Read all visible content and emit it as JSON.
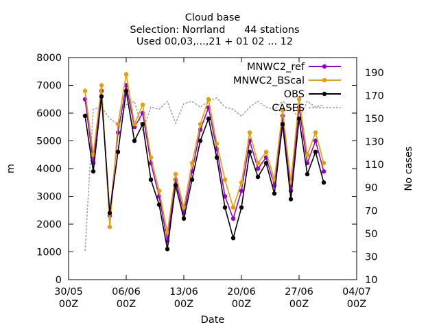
{
  "chart_data": {
    "type": "line",
    "title_lines": [
      "Cloud base",
      "Selection: Norrland      44 stations",
      "Used 00,03,...,21 + 01 02 ... 12"
    ],
    "xlabel": "Date",
    "ylabel": "m",
    "y2label": "No cases",
    "x_ticks": [
      {
        "date": "2024-05-30",
        "line1": "30/05",
        "line2": "00Z"
      },
      {
        "date": "2024-06-06",
        "line1": "06/06",
        "line2": "00Z"
      },
      {
        "date": "2024-06-13",
        "line1": "13/06",
        "line2": "00Z"
      },
      {
        "date": "2024-06-20",
        "line1": "20/06",
        "line2": "00Z"
      },
      {
        "date": "2024-06-27",
        "line1": "27/06",
        "line2": "00Z"
      },
      {
        "date": "2024-07-04",
        "line1": "04/07",
        "line2": "00Z"
      }
    ],
    "xlim": [
      "2024-05-30",
      "2024-07-04"
    ],
    "ylim": [
      0,
      8000
    ],
    "y_ticks": [
      "0",
      "1000",
      "2000",
      "3000",
      "4000",
      "5000",
      "6000",
      "7000",
      "8000"
    ],
    "y2lim": [
      10,
      203
    ],
    "y2_ticks": [
      "10",
      "30",
      "50",
      "70",
      "90",
      "110",
      "130",
      "150",
      "170",
      "190"
    ],
    "legend_position": "top-right",
    "legend": [
      {
        "label": "MNWC2_ref",
        "color": "#9400d3"
      },
      {
        "label": "MNWC2_BScal",
        "color": "#e69f00"
      },
      {
        "label": "OBS",
        "color": "#000000"
      },
      {
        "label": "CASES",
        "color": "#a0a0a0"
      }
    ],
    "series": [
      {
        "name": "MNWC2_ref",
        "color": "#9400d3",
        "x": [
          "2024-06-01",
          "2024-06-02",
          "2024-06-03",
          "2024-06-04",
          "2024-06-05",
          "2024-06-06",
          "2024-06-07",
          "2024-06-08",
          "2024-06-09",
          "2024-06-10",
          "2024-06-11",
          "2024-06-12",
          "2024-06-13",
          "2024-06-14",
          "2024-06-15",
          "2024-06-16",
          "2024-06-17",
          "2024-06-18",
          "2024-06-19",
          "2024-06-20",
          "2024-06-21",
          "2024-06-22",
          "2024-06-23",
          "2024-06-24",
          "2024-06-25",
          "2024-06-26",
          "2024-06-27",
          "2024-06-28",
          "2024-06-29",
          "2024-06-30"
        ],
        "y": [
          6500,
          4200,
          6800,
          2300,
          5300,
          7000,
          5500,
          6000,
          4200,
          3000,
          1400,
          3600,
          2400,
          3900,
          5400,
          6200,
          4700,
          3000,
          2200,
          3200,
          5000,
          4000,
          4400,
          3400,
          5900,
          3200,
          6200,
          4200,
          5000,
          3900
        ]
      },
      {
        "name": "MNWC2_BScal",
        "color": "#e69f00",
        "x": [
          "2024-06-01",
          "2024-06-02",
          "2024-06-03",
          "2024-06-04",
          "2024-06-05",
          "2024-06-06",
          "2024-06-07",
          "2024-06-08",
          "2024-06-09",
          "2024-06-10",
          "2024-06-11",
          "2024-06-12",
          "2024-06-13",
          "2024-06-14",
          "2024-06-15",
          "2024-06-16",
          "2024-06-17",
          "2024-06-18",
          "2024-06-19",
          "2024-06-20",
          "2024-06-21",
          "2024-06-22",
          "2024-06-23",
          "2024-06-24",
          "2024-06-25",
          "2024-06-26",
          "2024-06-27",
          "2024-06-28",
          "2024-06-29",
          "2024-06-30"
        ],
        "y": [
          6800,
          4500,
          7000,
          1900,
          5600,
          7400,
          5600,
          6300,
          4400,
          3200,
          1700,
          3800,
          2600,
          4200,
          5600,
          6500,
          4900,
          3600,
          2600,
          3500,
          5300,
          4200,
          4600,
          3600,
          6100,
          3500,
          6500,
          4500,
          5300,
          4200
        ]
      },
      {
        "name": "OBS",
        "color": "#000000",
        "x": [
          "2024-06-01",
          "2024-06-02",
          "2024-06-03",
          "2024-06-04",
          "2024-06-05",
          "2024-06-06",
          "2024-06-07",
          "2024-06-08",
          "2024-06-09",
          "2024-06-10",
          "2024-06-11",
          "2024-06-12",
          "2024-06-13",
          "2024-06-14",
          "2024-06-15",
          "2024-06-16",
          "2024-06-17",
          "2024-06-18",
          "2024-06-19",
          "2024-06-20",
          "2024-06-21",
          "2024-06-22",
          "2024-06-23",
          "2024-06-24",
          "2024-06-25",
          "2024-06-26",
          "2024-06-27",
          "2024-06-28",
          "2024-06-29",
          "2024-06-30"
        ],
        "y": [
          5900,
          3900,
          6600,
          2400,
          4600,
          6800,
          5000,
          5600,
          3600,
          2700,
          1100,
          3400,
          2200,
          3600,
          5000,
          5800,
          4400,
          2600,
          1500,
          2600,
          4600,
          3700,
          4200,
          3100,
          5600,
          2900,
          5800,
          3800,
          4600,
          3500
        ]
      },
      {
        "name": "CASES",
        "color": "#a0a0a0",
        "axis": "y2",
        "x": [
          "2024-06-01",
          "2024-06-02",
          "2024-06-03",
          "2024-06-04",
          "2024-06-05",
          "2024-06-06",
          "2024-06-07",
          "2024-06-08",
          "2024-06-09",
          "2024-06-10",
          "2024-06-11",
          "2024-06-12",
          "2024-06-13",
          "2024-06-14",
          "2024-06-15",
          "2024-06-16",
          "2024-06-17",
          "2024-06-18",
          "2024-06-19",
          "2024-06-20",
          "2024-06-21",
          "2024-06-22",
          "2024-06-23",
          "2024-06-24",
          "2024-06-25",
          "2024-06-26",
          "2024-06-27",
          "2024-06-28",
          "2024-06-29",
          "2024-06-30"
        ],
        "y": [
          35,
          158,
          160,
          150,
          145,
          162,
          165,
          140,
          160,
          158,
          165,
          146,
          163,
          165,
          160,
          165,
          168,
          160,
          158,
          152,
          160,
          165,
          160,
          158,
          165,
          160,
          150,
          165,
          160,
          162
        ]
      }
    ]
  }
}
